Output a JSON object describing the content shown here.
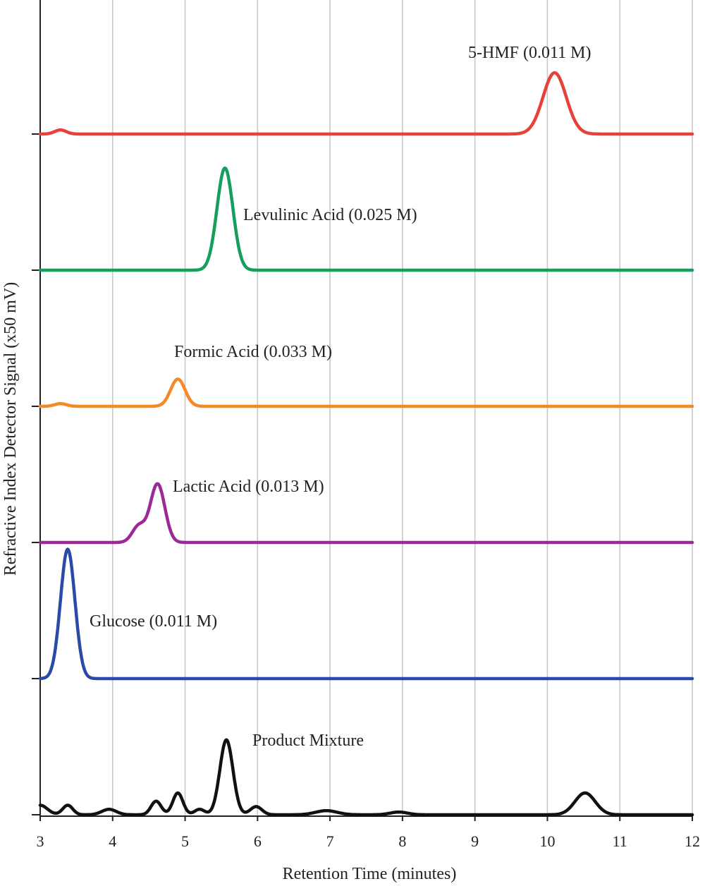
{
  "chart_data": {
    "type": "line",
    "title": "",
    "xlabel": "Retention Time (minutes)",
    "ylabel": "Refractive Index Detector Signal (x50 mV)",
    "xlim": [
      3,
      12
    ],
    "x_ticks": [
      3,
      4,
      5,
      6,
      7,
      8,
      9,
      10,
      11,
      12
    ],
    "grid": "vertical",
    "series": [
      {
        "name": "5-HMF",
        "annotation": "5-HMF (0.011 M)",
        "color": "#e8413a",
        "baseline_level": 5,
        "peaks": [
          {
            "rt": 3.28,
            "height": 0.03,
            "width": 0.08
          },
          {
            "rt": 10.1,
            "height": 0.45,
            "width": 0.16
          }
        ]
      },
      {
        "name": "Levulinic Acid",
        "annotation": "Levulinic Acid (0.025 M)",
        "color": "#14a05a",
        "baseline_level": 4,
        "peaks": [
          {
            "rt": 5.55,
            "height": 0.75,
            "width": 0.11
          }
        ]
      },
      {
        "name": "Formic Acid",
        "annotation": "Formic Acid (0.033 M)",
        "color": "#f5892a",
        "baseline_level": 3,
        "peaks": [
          {
            "rt": 3.28,
            "height": 0.02,
            "width": 0.08
          },
          {
            "rt": 4.9,
            "height": 0.2,
            "width": 0.1
          }
        ]
      },
      {
        "name": "Lactic Acid",
        "annotation": "Lactic Acid (0.013 M)",
        "color": "#9b2a96",
        "baseline_level": 2,
        "peaks": [
          {
            "rt": 4.36,
            "height": 0.12,
            "width": 0.09
          },
          {
            "rt": 4.62,
            "height": 0.43,
            "width": 0.1
          }
        ]
      },
      {
        "name": "Glucose",
        "annotation": "Glucose (0.011 M)",
        "color": "#2a4aa8",
        "baseline_level": 1,
        "peaks": [
          {
            "rt": 3.38,
            "height": 0.95,
            "width": 0.1
          }
        ]
      },
      {
        "name": "Product Mixture",
        "annotation": "Product Mixture",
        "color": "#111111",
        "baseline_level": 0,
        "peaks": [
          {
            "rt": 3.0,
            "height": 0.07,
            "width": 0.1
          },
          {
            "rt": 3.38,
            "height": 0.07,
            "width": 0.07
          },
          {
            "rt": 3.95,
            "height": 0.04,
            "width": 0.1
          },
          {
            "rt": 4.6,
            "height": 0.1,
            "width": 0.07
          },
          {
            "rt": 4.9,
            "height": 0.16,
            "width": 0.07
          },
          {
            "rt": 5.2,
            "height": 0.04,
            "width": 0.07
          },
          {
            "rt": 5.57,
            "height": 0.55,
            "width": 0.09
          },
          {
            "rt": 5.98,
            "height": 0.06,
            "width": 0.08
          },
          {
            "rt": 6.95,
            "height": 0.03,
            "width": 0.15
          },
          {
            "rt": 7.95,
            "height": 0.02,
            "width": 0.12
          },
          {
            "rt": 10.52,
            "height": 0.16,
            "width": 0.14
          }
        ]
      }
    ]
  }
}
